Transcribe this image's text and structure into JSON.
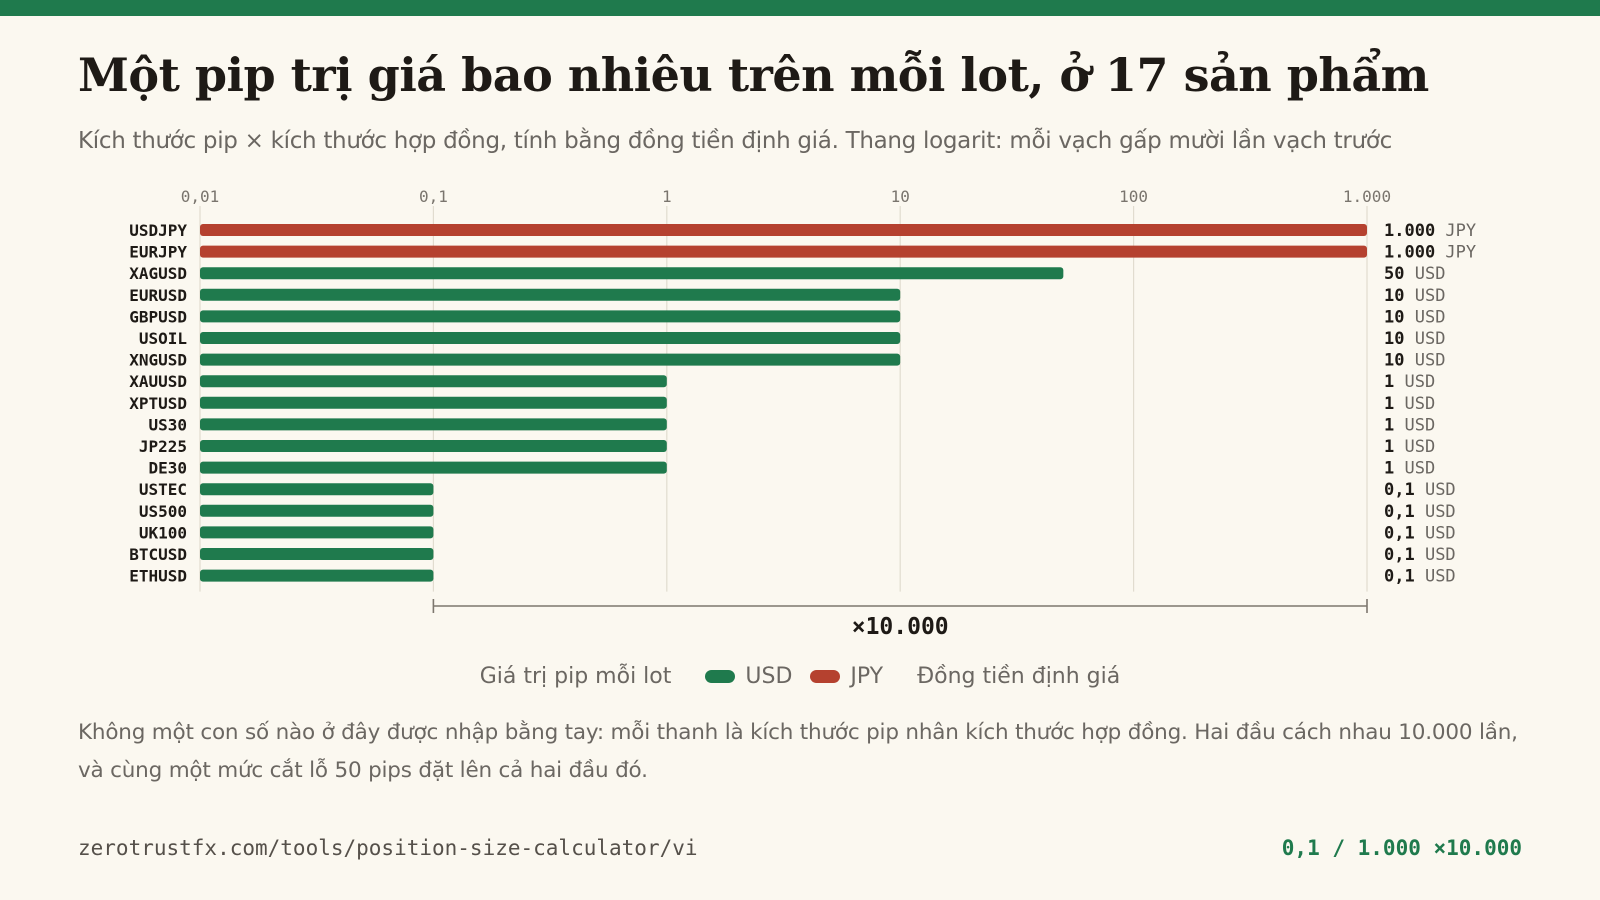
{
  "title": "Một pip trị giá bao nhiêu trên mỗi lot, ở 17 sản phẩm",
  "subtitle": "Kích thước pip × kích thước hợp đồng, tính bằng đồng tiền định giá. Thang logarit: mỗi vạch gấp mười lần vạch trước",
  "colors": {
    "accent": "#1f7a4d",
    "usd": "#1f7a4d",
    "jpy": "#b5412f"
  },
  "legend": {
    "title_left": "Giá trị pip mỗi lot",
    "items": [
      {
        "label": "USD",
        "color": "#1f7a4d"
      },
      {
        "label": "JPY",
        "color": "#b5412f"
      }
    ],
    "title_right": "Đồng tiền định giá"
  },
  "note": "Không một con số nào ở đây được nhập bằng tay: mỗi thanh là kích thước pip nhân kích thước hợp đồng. Hai đầu cách nhau 10.000 lần, và cùng một mức cắt lỗ 50 pips đặt lên cả hai đầu đó.",
  "footer": {
    "url": "zerotrustfx.com/tools/position-size-calculator/vi",
    "range": "0,1 / 1.000 ×10.000"
  },
  "chart_data": {
    "type": "bar",
    "orientation": "horizontal",
    "scale": "log",
    "xlim": [
      0.01,
      1000
    ],
    "ticks": [
      0.01,
      0.1,
      1,
      10,
      100,
      1000
    ],
    "tick_labels": [
      "0,01",
      "0,1",
      "1",
      "10",
      "100",
      "1.000"
    ],
    "grid": true,
    "categories": [
      "USDJPY",
      "EURJPY",
      "XAGUSD",
      "EURUSD",
      "GBPUSD",
      "USOIL",
      "XNGUSD",
      "XAUUSD",
      "XPTUSD",
      "US30",
      "JP225",
      "DE30",
      "USTEC",
      "US500",
      "UK100",
      "BTCUSD",
      "ETHUSD"
    ],
    "values": [
      1000,
      1000,
      50,
      10,
      10,
      10,
      10,
      1,
      1,
      1,
      1,
      1,
      0.1,
      0.1,
      0.1,
      0.1,
      0.1
    ],
    "value_labels": [
      "1.000",
      "1.000",
      "50",
      "10",
      "10",
      "10",
      "10",
      "1",
      "1",
      "1",
      "1",
      "1",
      "0,1",
      "0,1",
      "0,1",
      "0,1",
      "0,1"
    ],
    "currencies": [
      "JPY",
      "JPY",
      "USD",
      "USD",
      "USD",
      "USD",
      "USD",
      "USD",
      "USD",
      "USD",
      "USD",
      "USD",
      "USD",
      "USD",
      "USD",
      "USD",
      "USD"
    ],
    "span": {
      "from": 0.1,
      "to": 1000,
      "label": "×10.000"
    }
  }
}
